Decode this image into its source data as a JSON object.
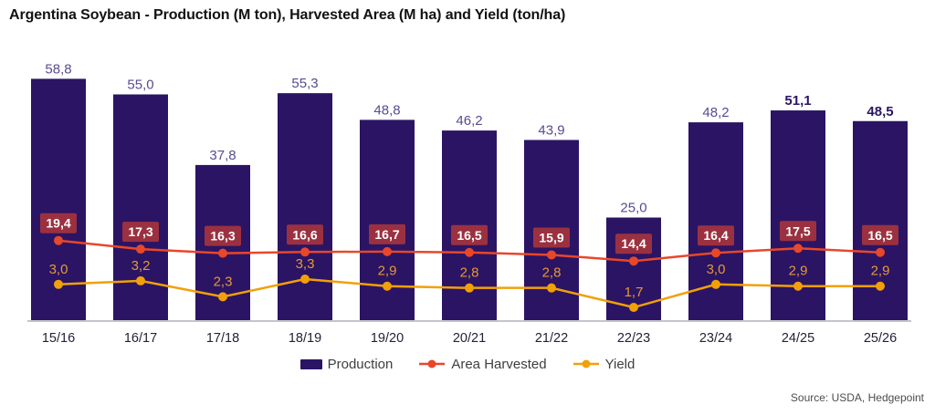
{
  "source": "Source: USDA, Hedgepoint",
  "colors": {
    "production_bar": "#2B1464",
    "area_line": "#E8472A",
    "area_label_box": "#9B3140",
    "area_label_text": "#FFFFFF",
    "yield_line": "#F2A007",
    "yield_label_text": "#E39A33",
    "bar_label": "#5A4B8F",
    "bar_label_emphasis": "#2B1464",
    "axis_label": "#262038",
    "axis_line": "#B3B0BA",
    "legend_text": "#3E3E3E",
    "title_text": "#121212",
    "source_text": "#4D4D4D",
    "background": "#FFFFFF"
  },
  "chart_data": {
    "type": "bar",
    "title": "Argentina Soybean - Production (M ton), Harvested Area (M ha) and Yield (ton/ha)",
    "categories": [
      "15/16",
      "16/17",
      "17/18",
      "18/19",
      "19/20",
      "20/21",
      "21/22",
      "22/23",
      "23/24",
      "24/25",
      "25/26"
    ],
    "series": [
      {
        "name": "Production",
        "kind": "bar",
        "unit": "M ton",
        "values": [
          58.8,
          55.0,
          37.8,
          55.3,
          48.8,
          46.2,
          43.9,
          25.0,
          48.2,
          51.1,
          48.5
        ],
        "labels": [
          "58,8",
          "55,0",
          "37,8",
          "55,3",
          "48,8",
          "46,2",
          "43,9",
          "25,0",
          "48,2",
          "51,1",
          "48,5"
        ]
      },
      {
        "name": "Area Harvested",
        "kind": "line",
        "unit": "M ha",
        "values": [
          19.4,
          17.3,
          16.3,
          16.6,
          16.7,
          16.5,
          15.9,
          14.4,
          16.4,
          17.5,
          16.5
        ],
        "labels": [
          "19,4",
          "17,3",
          "16,3",
          "16,6",
          "16,7",
          "16,5",
          "15,9",
          "14,4",
          "16,4",
          "17,5",
          "16,5"
        ]
      },
      {
        "name": "Yield",
        "kind": "line",
        "unit": "ton/ha",
        "values": [
          3.0,
          3.2,
          2.3,
          3.3,
          2.9,
          2.8,
          2.8,
          1.7,
          3.0,
          2.9,
          2.9
        ],
        "labels": [
          "3,0",
          "3,2",
          "2,3",
          "3,3",
          "2,9",
          "2,8",
          "2,8",
          "1,7",
          "3,0",
          "2,9",
          "2,9"
        ]
      }
    ],
    "emphasized_categories": [
      "24/25",
      "25/26"
    ],
    "ylim": [
      0,
      62
    ],
    "grid": false,
    "axes_visible": false,
    "legend_position": "bottom",
    "decimal_separator": ","
  }
}
